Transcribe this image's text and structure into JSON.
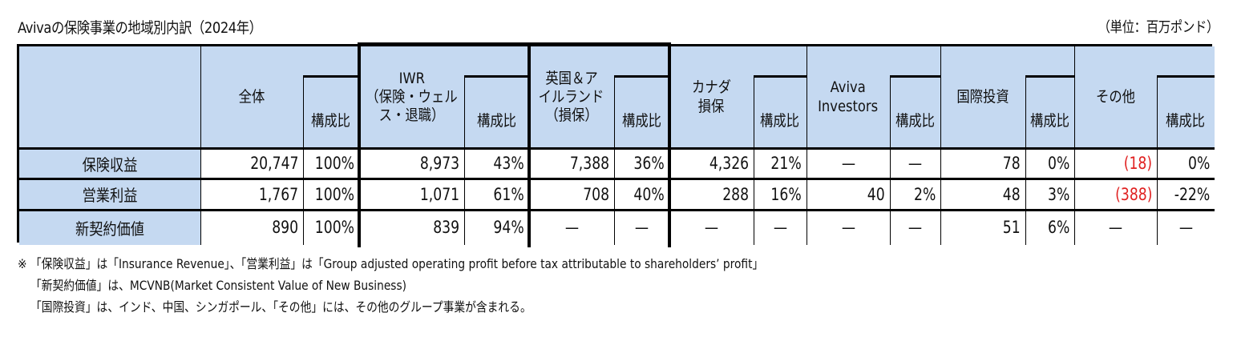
{
  "title": "Avivaの保険事業の地域別内訳（2024年）",
  "unit": "（単位：百万ポンド）",
  "table": {
    "columns": [
      {
        "label": "全体",
        "share_label": "構成比"
      },
      {
        "label": "IWR\n（保険・ウェルス・退職）",
        "label_lines": [
          "IWR",
          "（保険・ウェル",
          "ス・退職）"
        ],
        "share_label": "構成比"
      },
      {
        "label": "英国＆アイルランド（損保）",
        "label_lines": [
          "英国＆ア",
          "イルランド",
          "（損保）"
        ],
        "share_label": "構成比"
      },
      {
        "label": "カナダ損保",
        "label_lines": [
          "カナダ",
          "損保"
        ],
        "share_label": "構成比"
      },
      {
        "label": "Aviva Investors",
        "label_lines": [
          "Aviva",
          "Investors"
        ],
        "share_label": "構成比"
      },
      {
        "label": "国際投資",
        "label_lines": [
          "国際投資"
        ],
        "share_label": "構成比"
      },
      {
        "label": "その他",
        "label_lines": [
          "その他"
        ],
        "share_label": "構成比"
      }
    ],
    "rows": [
      {
        "label": "保険収益",
        "cells": [
          {
            "value": "20,747",
            "share": "100%"
          },
          {
            "value": "8,973",
            "share": "43%"
          },
          {
            "value": "7,388",
            "share": "36%"
          },
          {
            "value": "4,326",
            "share": "21%"
          },
          {
            "value": "—",
            "share": "—"
          },
          {
            "value": "78",
            "share": "0%"
          },
          {
            "value": "(18)",
            "share": "0%",
            "negative": true
          }
        ]
      },
      {
        "label": "営業利益",
        "cells": [
          {
            "value": "1,767",
            "share": "100%"
          },
          {
            "value": "1,071",
            "share": "61%"
          },
          {
            "value": "708",
            "share": "40%"
          },
          {
            "value": "288",
            "share": "16%"
          },
          {
            "value": "40",
            "share": "2%"
          },
          {
            "value": "48",
            "share": "3%"
          },
          {
            "value": "(388)",
            "share": "-22%",
            "negative": true
          }
        ]
      },
      {
        "label": "新契約価値",
        "cells": [
          {
            "value": "890",
            "share": "100%"
          },
          {
            "value": "839",
            "share": "94%"
          },
          {
            "value": "—",
            "share": "—"
          },
          {
            "value": "—",
            "share": "—"
          },
          {
            "value": "—",
            "share": "—"
          },
          {
            "value": "51",
            "share": "6%"
          },
          {
            "value": "—",
            "share": "—"
          }
        ]
      }
    ]
  },
  "notes": [
    "※ 「保険収益」は「Insurance Revenue」、「営業利益」は「Group adjusted operating profit before tax attributable to shareholders’ profit」",
    "「新契約価値」は、MCVNB(Market Consistent Value of New Business)",
    "「国際投資」は、インド、中国、シンガポール、「その他」には、その他のグループ事業が含まれる。"
  ],
  "colors": {
    "header_bg": "#c5d9f1",
    "negative_text": "#e02020",
    "border": "#000000"
  }
}
